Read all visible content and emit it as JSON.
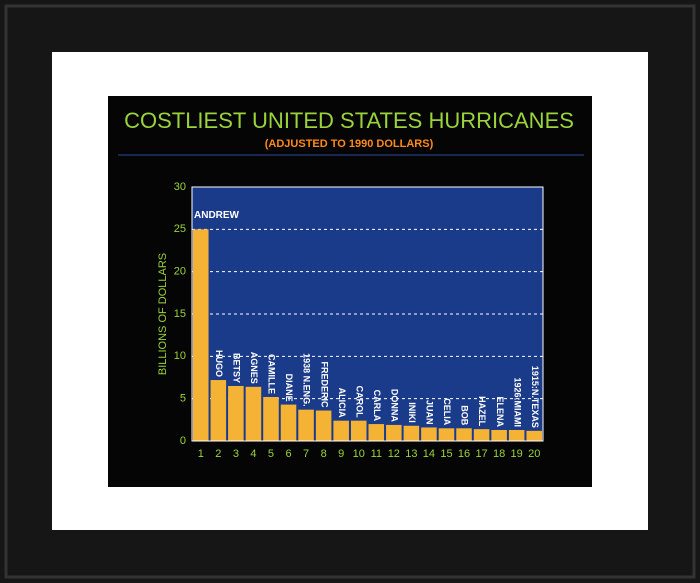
{
  "chart_data": {
    "type": "bar",
    "title": "COSTLIEST UNITED STATES HURRICANES",
    "subtitle": "(ADJUSTED TO 1990 DOLLARS)",
    "y_label": "BILLIONS OF DOLLARS",
    "categories": [
      "1",
      "2",
      "3",
      "4",
      "5",
      "6",
      "7",
      "8",
      "9",
      "10",
      "11",
      "12",
      "13",
      "14",
      "15",
      "16",
      "17",
      "18",
      "19",
      "20"
    ],
    "bar_labels": [
      "ANDREW",
      "HUGO",
      "BETSY",
      "AGNES",
      "CAMILLE",
      "DIANE",
      "1938 N.ENG.",
      "FREDERIC",
      "ALICIA",
      "CAROL",
      "CARLA",
      "DONNA",
      "INIKI",
      "JUAN",
      "CELIA",
      "BOB",
      "HAZEL",
      "ELENA",
      "1926:MIAMI",
      "1915:N.TEXAS"
    ],
    "values": [
      25,
      7.2,
      6.5,
      6.4,
      5.2,
      4.3,
      3.7,
      3.6,
      2.4,
      2.4,
      2.0,
      1.9,
      1.8,
      1.6,
      1.5,
      1.5,
      1.4,
      1.3,
      1.3,
      1.2
    ],
    "color": "#f5b335",
    "ylim": [
      0,
      30
    ],
    "yticks": [
      0,
      5,
      10,
      15,
      20,
      25,
      30
    ],
    "grid": true
  }
}
